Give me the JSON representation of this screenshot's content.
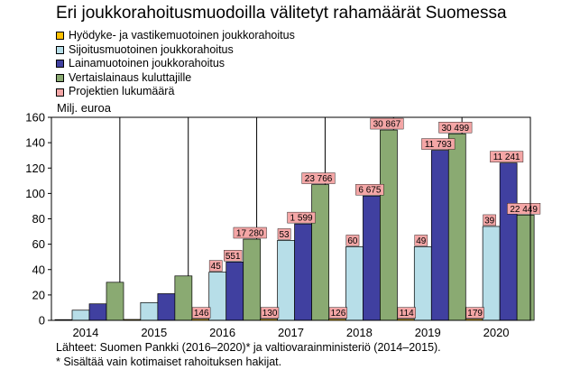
{
  "title": "Eri joukkorahoitusmuodoilla välitetyt rahamäärät Suomessa",
  "footer": {
    "source": "Lähteet: Suomen Pankki (2016–2020)* ja valtiovarainministeriö (2014–2015).",
    "note": "* Sisältää vain kotimaiset rahoituksen hakijat."
  },
  "chart_data": {
    "type": "bar",
    "title": "Eri joukkorahoitusmuodoilla välitetyt rahamäärät Suomessa",
    "ylabel": "Milj. euroa",
    "ylim": [
      0,
      160
    ],
    "yticks": [
      0,
      20,
      40,
      60,
      80,
      100,
      120,
      140,
      160
    ],
    "grid": false,
    "legend_position": "top-left",
    "categories": [
      "2014",
      "2015",
      "2016",
      "2017",
      "2018",
      "2019",
      "2020"
    ],
    "series": [
      {
        "name": "Hyödyke- ja vastikemuotoinen joukkorahoitus",
        "color": "#ffc000",
        "values": [
          0.5,
          0.7,
          1,
          1,
          1,
          1,
          1
        ]
      },
      {
        "name": "Sijoitusmuotoinen joukkorahoitus",
        "color": "#b7dee8",
        "values": [
          8,
          14,
          38,
          63,
          58,
          58,
          74
        ]
      },
      {
        "name": "Lainamuotoinen joukkorahoitus",
        "color": "#4040a0",
        "values": [
          13,
          21,
          46,
          76,
          98,
          134,
          124
        ]
      },
      {
        "name": "Vertaislainaus kuluttajille",
        "color": "#8aaa72",
        "values": [
          30,
          35,
          64,
          107,
          150,
          147,
          83
        ]
      }
    ],
    "projects_legend": {
      "name": "Projektien lukumäärä",
      "color": "#f4a6a6"
    },
    "project_counts": [
      {
        "category": "2016",
        "series": 0,
        "text": "146"
      },
      {
        "category": "2016",
        "series": 1,
        "text": "45"
      },
      {
        "category": "2016",
        "series": 2,
        "text": "551"
      },
      {
        "category": "2016",
        "series": 3,
        "text": "17 280"
      },
      {
        "category": "2017",
        "series": 0,
        "text": "130"
      },
      {
        "category": "2017",
        "series": 1,
        "text": "53"
      },
      {
        "category": "2017",
        "series": 2,
        "text": "1 599"
      },
      {
        "category": "2017",
        "series": 3,
        "text": "23 766"
      },
      {
        "category": "2018",
        "series": 0,
        "text": "126"
      },
      {
        "category": "2018",
        "series": 1,
        "text": "60"
      },
      {
        "category": "2018",
        "series": 2,
        "text": "6 675"
      },
      {
        "category": "2018",
        "series": 3,
        "text": "30 867"
      },
      {
        "category": "2019",
        "series": 0,
        "text": "114"
      },
      {
        "category": "2019",
        "series": 1,
        "text": "49"
      },
      {
        "category": "2019",
        "series": 2,
        "text": "11 793"
      },
      {
        "category": "2019",
        "series": 3,
        "text": "30 499"
      },
      {
        "category": "2020",
        "series": 0,
        "text": "179"
      },
      {
        "category": "2020",
        "series": 1,
        "text": "39"
      },
      {
        "category": "2020",
        "series": 2,
        "text": "11 241"
      },
      {
        "category": "2020",
        "series": 3,
        "text": "22 449"
      }
    ]
  }
}
